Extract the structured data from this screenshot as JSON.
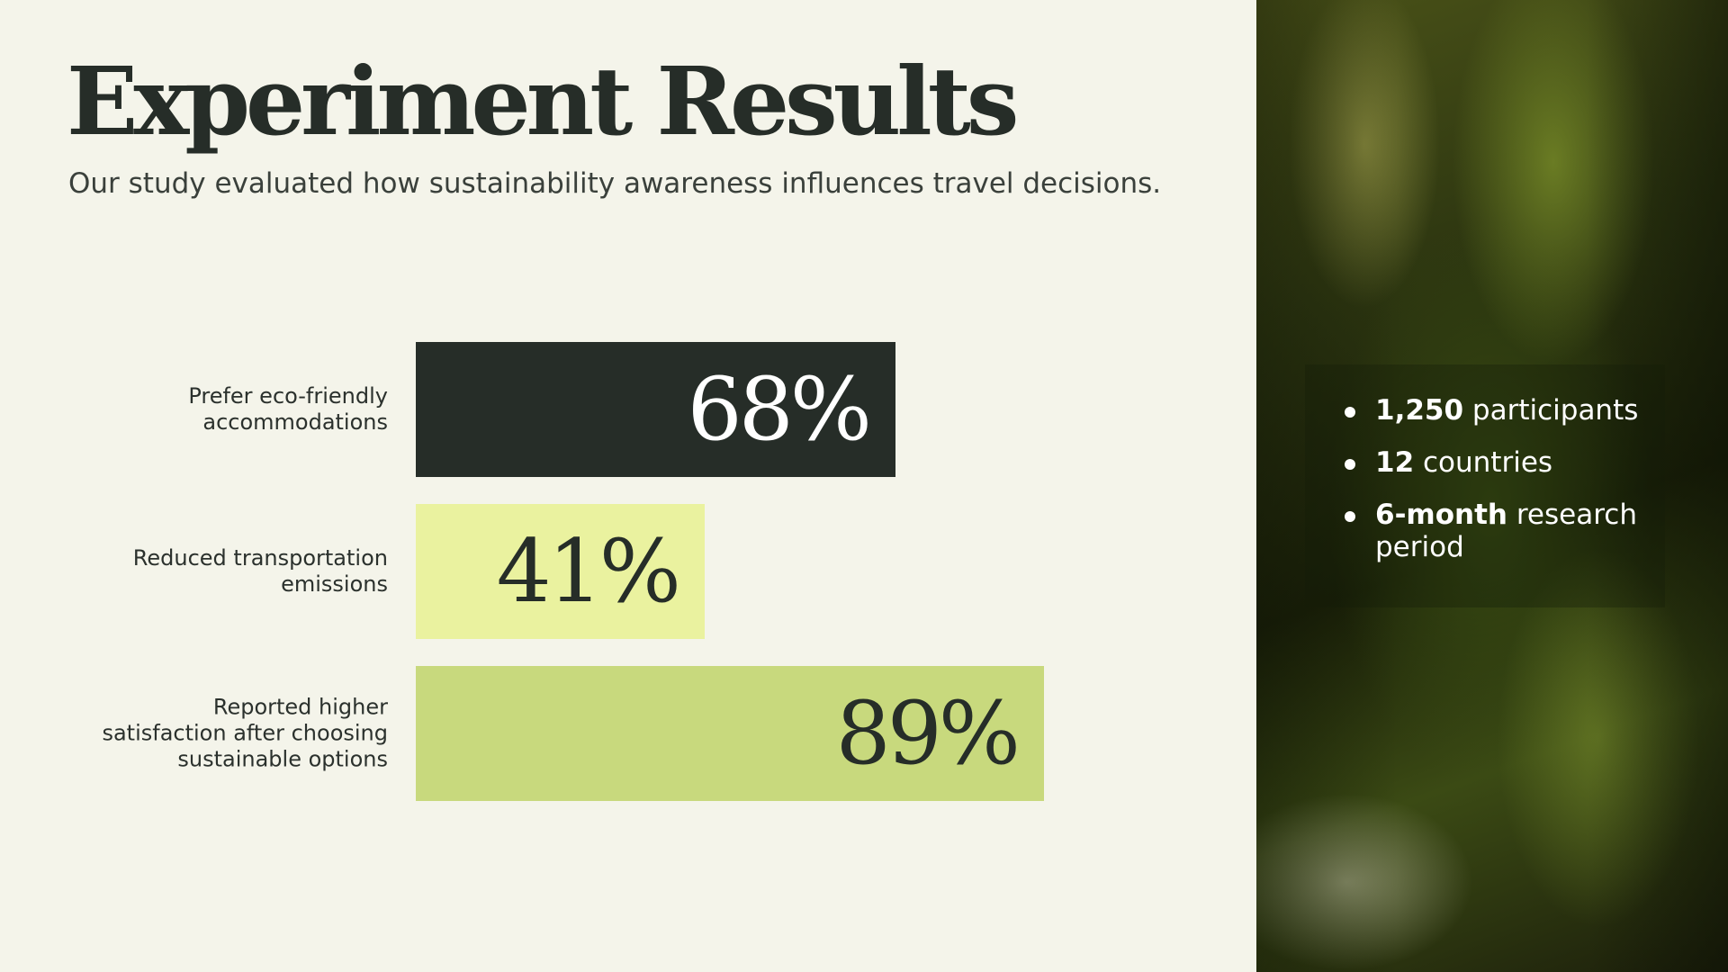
{
  "header": {
    "title": "Experiment Results",
    "subtitle": "Our study evaluated how sustainability awareness influences travel decisions."
  },
  "chart_data": {
    "type": "bar",
    "orientation": "horizontal",
    "categories": [
      "Prefer eco-friendly accommodations",
      "Reduced transportation emissions",
      "Reported higher satisfaction after choosing sustainable options"
    ],
    "values": [
      68,
      41,
      89
    ],
    "value_labels": [
      "68%",
      "41%",
      "89%"
    ],
    "unit": "%",
    "xlim": [
      0,
      100
    ],
    "grid": false,
    "legend": "none",
    "colors": [
      "#262d28",
      "#eaf29f",
      "#c8d97d"
    ],
    "label_colors": [
      "#ffffff",
      "#262d28",
      "#262d28"
    ]
  },
  "stats": [
    {
      "bold": "1,250",
      "text": " participants"
    },
    {
      "bold": "12",
      "text": " countries"
    },
    {
      "bold": "6-month",
      "text": " research period"
    }
  ]
}
